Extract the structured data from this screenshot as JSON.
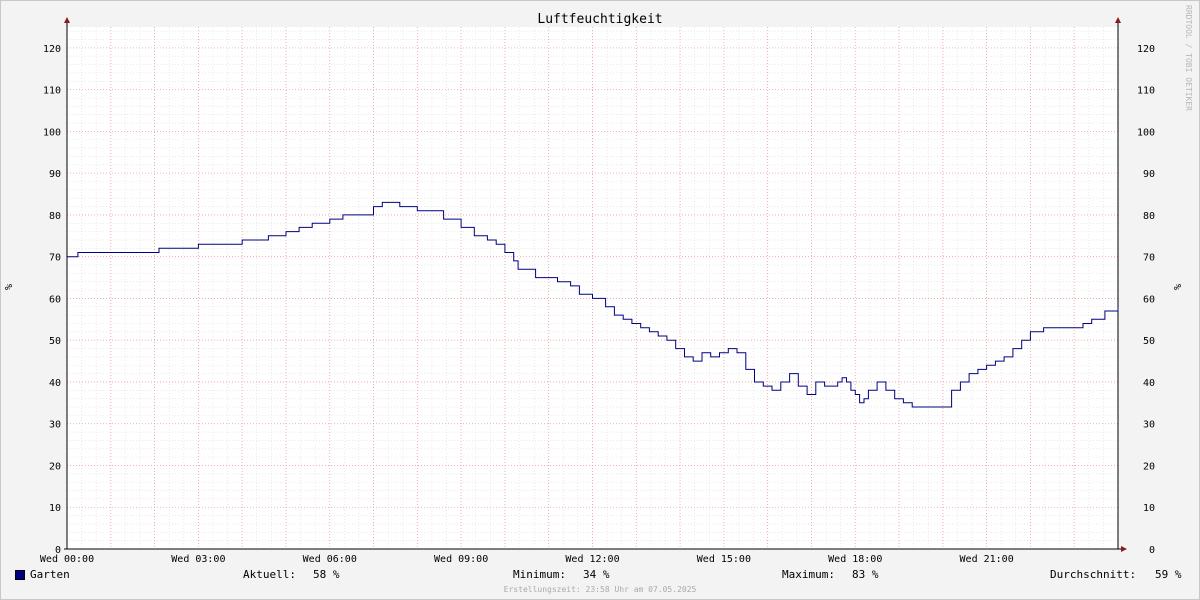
{
  "chart_data": {
    "type": "line",
    "title": "Luftfeuchtigkeit",
    "ylabel": "%",
    "ylim": [
      0,
      125
    ],
    "yticks": [
      0,
      10,
      20,
      30,
      40,
      50,
      60,
      70,
      80,
      90,
      100,
      110,
      120
    ],
    "xlim": [
      0,
      24
    ],
    "xticks": [
      {
        "value": 0,
        "label": "Wed 00:00"
      },
      {
        "value": 3,
        "label": "Wed 03:00"
      },
      {
        "value": 6,
        "label": "Wed 06:00"
      },
      {
        "value": 9,
        "label": "Wed 09:00"
      },
      {
        "value": 12,
        "label": "Wed 12:00"
      },
      {
        "value": 15,
        "label": "Wed 15:00"
      },
      {
        "value": 18,
        "label": "Wed 18:00"
      },
      {
        "value": 21,
        "label": "Wed 21:00"
      }
    ],
    "grid": true,
    "series": [
      {
        "name": "Garten",
        "color": "#000080",
        "x": [
          0,
          0.25,
          1,
          2,
          2.1,
          2.4,
          3,
          3.2,
          3.9,
          4,
          4.3,
          4.6,
          5,
          5.3,
          5.6,
          6,
          6.3,
          7,
          7.2,
          7.3,
          7.6,
          8,
          8.3,
          8.6,
          9,
          9.3,
          9.6,
          9.8,
          10,
          10.2,
          10.3,
          10.5,
          10.7,
          11,
          11.2,
          11.3,
          11.5,
          11.7,
          12,
          12.3,
          12.5,
          12.7,
          12.9,
          13.1,
          13.3,
          13.5,
          13.7,
          13.9,
          14.1,
          14.3,
          14.5,
          14.7,
          14.9,
          15.1,
          15.3,
          15.5,
          15.7,
          15.9,
          16.1,
          16.3,
          16.5,
          16.7,
          16.9,
          17.1,
          17.3,
          17.5,
          17.6,
          17.7,
          17.8,
          17.9,
          18,
          18.1,
          18.2,
          18.3,
          18.5,
          18.7,
          18.9,
          19.1,
          19.3,
          19.6,
          20,
          20.2,
          20.4,
          20.6,
          20.8,
          21,
          21.2,
          21.4,
          21.6,
          21.8,
          22,
          22.3,
          22.6,
          22.9,
          23.2,
          23.4,
          23.7,
          24
        ],
        "values": [
          70,
          71,
          71,
          71,
          72,
          72,
          73,
          73,
          73,
          74,
          74,
          75,
          76,
          77,
          78,
          79,
          80,
          82,
          83,
          83,
          82,
          81,
          81,
          79,
          77,
          75,
          74,
          73,
          71,
          69,
          67,
          67,
          65,
          65,
          64,
          64,
          63,
          61,
          60,
          58,
          56,
          55,
          54,
          53,
          52,
          51,
          50,
          48,
          46,
          45,
          47,
          46,
          47,
          48,
          47,
          43,
          40,
          39,
          38,
          40,
          42,
          39,
          37,
          40,
          39,
          39,
          40,
          41,
          40,
          38,
          37,
          35,
          36,
          38,
          40,
          38,
          36,
          35,
          34,
          34,
          34,
          38,
          40,
          42,
          43,
          44,
          45,
          46,
          48,
          50,
          52,
          53,
          53,
          53,
          54,
          55,
          57,
          58
        ]
      }
    ]
  },
  "side_label": "RRDTOOL / TOBI OETIKER",
  "legend": {
    "series_name": "Garten",
    "current_label": "Aktuell:",
    "current_value": "58 %",
    "min_label": "Minimum:",
    "min_value": "34 %",
    "max_label": "Maximum:",
    "max_value": "83 %",
    "avg_label": "Durchschnitt:",
    "avg_value": "59 %"
  },
  "footer": "Erstellungszeit: 23:58 Uhr am 07.05.2025"
}
